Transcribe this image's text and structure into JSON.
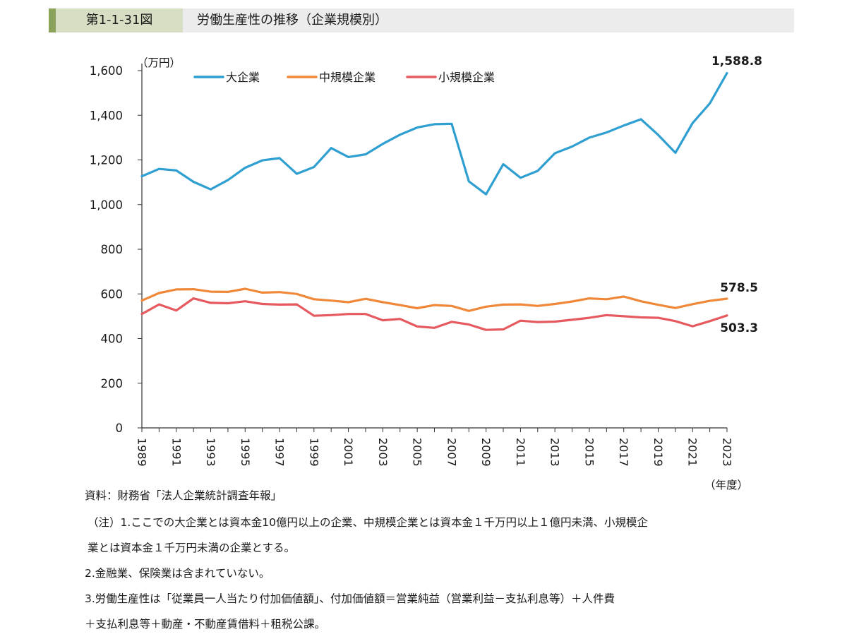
{
  "header": {
    "label": "第1-1-31図",
    "title": "労働生産性の推移（企業規模別）"
  },
  "chart_data": {
    "type": "line",
    "unit_label": "（万円）",
    "xlabel": "（年度）",
    "ylim": [
      0,
      1600
    ],
    "yticks": [
      0,
      200,
      400,
      600,
      800,
      1000,
      1200,
      1400,
      1600
    ],
    "ytick_labels": [
      "0",
      "200",
      "400",
      "600",
      "800",
      "1,000",
      "1,200",
      "1,400",
      "1,600"
    ],
    "x": [
      1989,
      1990,
      1991,
      1992,
      1993,
      1994,
      1995,
      1996,
      1997,
      1998,
      1999,
      2000,
      2001,
      2002,
      2003,
      2004,
      2005,
      2006,
      2007,
      2008,
      2009,
      2010,
      2011,
      2012,
      2013,
      2014,
      2015,
      2016,
      2017,
      2018,
      2019,
      2020,
      2021,
      2022,
      2023
    ],
    "xtick_labels": [
      "1989",
      "1991",
      "1993",
      "1995",
      "1997",
      "1999",
      "2001",
      "2003",
      "2005",
      "2007",
      "2009",
      "2011",
      "2013",
      "2015",
      "2017",
      "2019",
      "2021",
      "2023"
    ],
    "legend_position": "top",
    "grid": false,
    "series": [
      {
        "name": "大企業",
        "color": "#2e9fd0",
        "values": [
          1127,
          1160,
          1153,
          1102,
          1068,
          1110,
          1165,
          1198,
          1208,
          1138,
          1168,
          1253,
          1213,
          1225,
          1272,
          1313,
          1345,
          1360,
          1362,
          1104,
          1046,
          1181,
          1120,
          1151,
          1230,
          1260,
          1300,
          1323,
          1354,
          1382,
          1312,
          1232,
          1365,
          1453,
          1588.8
        ],
        "end_label": "1,588.8"
      },
      {
        "name": "中規模企業",
        "color": "#f0883a",
        "values": [
          570,
          604,
          620,
          621,
          610,
          609,
          623,
          606,
          608,
          600,
          576,
          570,
          563,
          578,
          563,
          550,
          536,
          550,
          546,
          524,
          543,
          552,
          553,
          546,
          555,
          566,
          580,
          576,
          588,
          567,
          551,
          537,
          554,
          569,
          578.5
        ],
        "end_label": "578.5"
      },
      {
        "name": "小規模企業",
        "color": "#e65a5f",
        "values": [
          510,
          553,
          526,
          580,
          560,
          558,
          567,
          555,
          552,
          553,
          502,
          505,
          510,
          510,
          482,
          488,
          454,
          448,
          475,
          463,
          439,
          441,
          480,
          474,
          476,
          484,
          493,
          505,
          500,
          495,
          493,
          478,
          455,
          478,
          503.3
        ],
        "end_label": "503.3"
      }
    ]
  },
  "notes": [
    "資料：財務省「法人企業統計調査年報」",
    "（注）1.ここでの大企業とは資本金10億円以上の企業、中規模企業とは資本金１千万円以上１億円未満、小規模企",
    "業とは資本金１千万円未満の企業とする。",
    "2.金融業、保険業は含まれていない。",
    "3.労働生産性は「従業員一人当たり付加価値額」、付加価値額＝営業純益（営業利益－支払利息等）＋人件費",
    "＋支払利息等＋動産・不動産賃借料＋租税公課。"
  ]
}
